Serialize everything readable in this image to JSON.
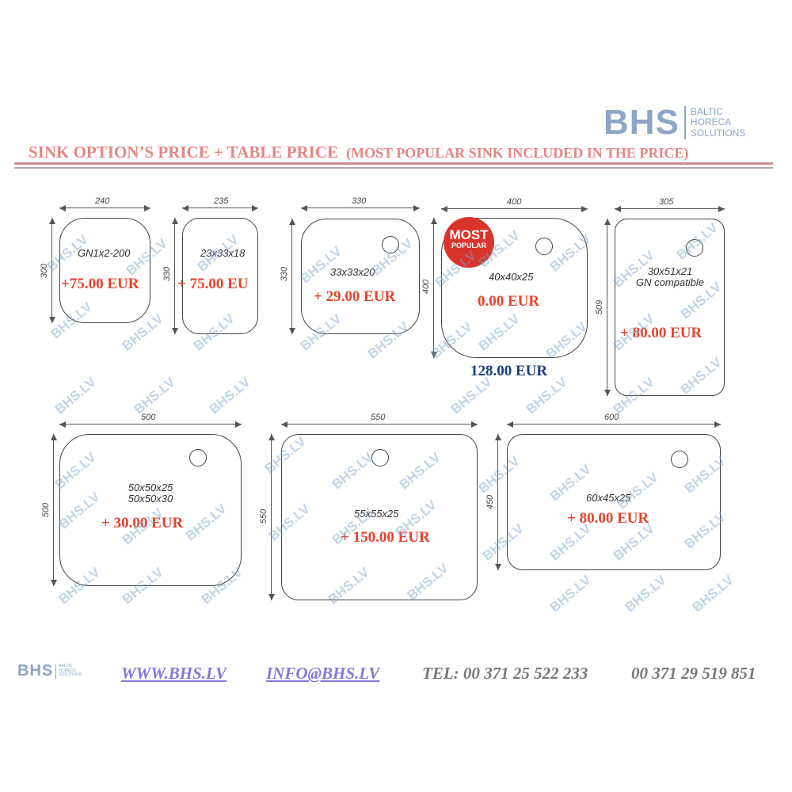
{
  "header": {
    "logo": {
      "letters": "BHS",
      "line1": "BALTIC",
      "line2": "HORECA",
      "line3": "SOLUTIONS"
    },
    "title": "SINK OPTION’S PRICE + TABLE PRICE",
    "subtitle": "(MOST POPULAR SINK INCLUDED IN THE PRICE)"
  },
  "watermark": "BHS.LV",
  "sinks": [
    {
      "width": "240",
      "height": "300",
      "model": "GN1x2-200",
      "price": "+75.00 EUR"
    },
    {
      "width": "235",
      "height": "330",
      "model": "23x33x18",
      "price": "+ 75.00 EU"
    },
    {
      "width": "330",
      "height": "330",
      "model": "33x33x20",
      "price": "+ 29.00 EUR"
    },
    {
      "width": "400",
      "height": "400",
      "model": "40x40x25",
      "price": "0.00 EUR",
      "badge_line1": "MOST",
      "badge_line2": "POPULAR",
      "included_price": "128.00 EUR"
    },
    {
      "width": "305",
      "height": "509",
      "model": "30x51x21",
      "model2": "GN compatible",
      "price": "+ 80.00 EUR"
    },
    {
      "width": "500",
      "height": "500",
      "model": "50x50x25",
      "model2": "50x50x30",
      "price": "+ 30.00 EUR"
    },
    {
      "width": "550",
      "height": "550",
      "model": "55x55x25",
      "price": "+ 150.00 EUR"
    },
    {
      "width": "600",
      "height": "450",
      "model": "60x45x25",
      "price": "+ 80.00 EUR"
    }
  ],
  "footer": {
    "website": "WWW.BHS.LV",
    "email": "INFO@BHS.LV",
    "tel": "TEL: 00 371  25 522 233",
    "tel2": "00 371 29 519 851"
  },
  "colors": {
    "title": "#e58585",
    "price": "#e5432e",
    "included": "#1b3f7a",
    "logo": "#8ea5c6",
    "link": "#8777d6"
  }
}
